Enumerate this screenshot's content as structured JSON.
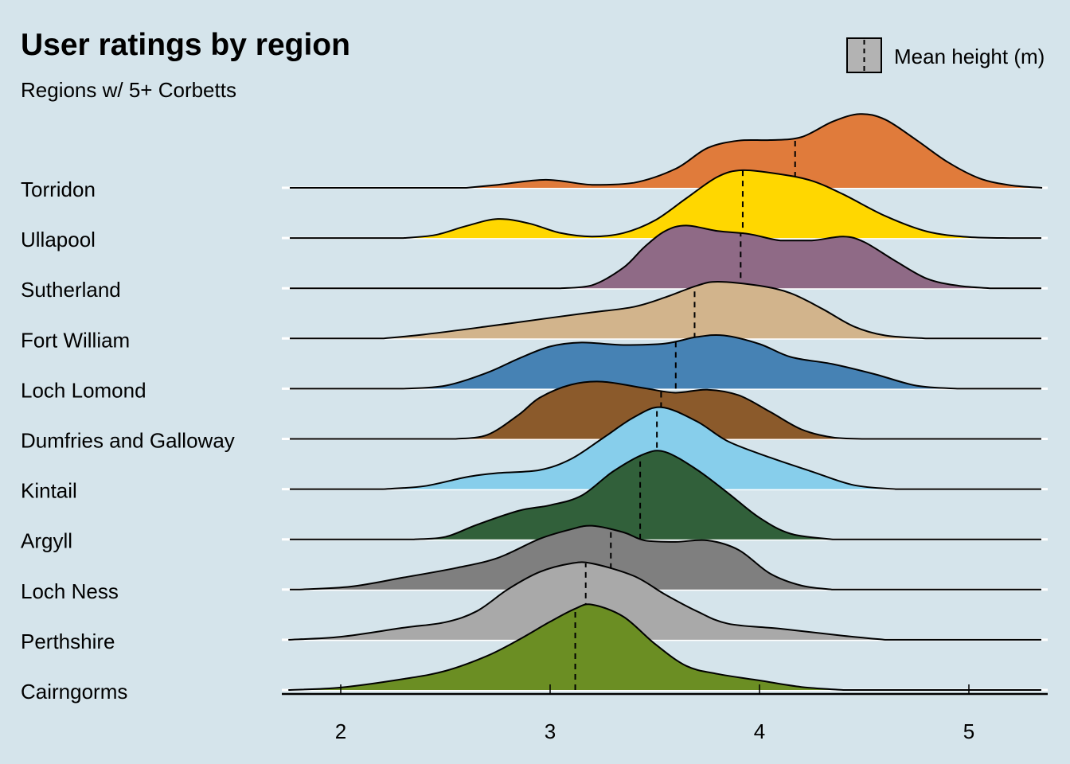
{
  "chart_data": {
    "type": "ridgeline",
    "title": "User ratings by region",
    "subtitle": "Regions w/ 5+ Corbetts",
    "xlabel": "",
    "ylabel": "",
    "xlim": [
      1.75,
      5.35
    ],
    "x_ticks": [
      2,
      3,
      4,
      5
    ],
    "x_tick_labels": [
      "2",
      "3",
      "4",
      "5"
    ],
    "grid": "horizontal baselines only",
    "legend": {
      "position": "top-right",
      "label": "Mean height (m)",
      "swatch_color": "#b3b3b3",
      "marker": "dashed vertical line"
    },
    "density_units": "relative height, 1 = spacing between rows",
    "series": [
      {
        "name": "Torridon",
        "color": "#e07b3b",
        "mean": 4.17,
        "density": [
          [
            2.6,
            0
          ],
          [
            2.75,
            0.06
          ],
          [
            2.98,
            0.16
          ],
          [
            3.2,
            0.06
          ],
          [
            3.4,
            0.1
          ],
          [
            3.6,
            0.38
          ],
          [
            3.75,
            0.79
          ],
          [
            3.9,
            0.94
          ],
          [
            4.05,
            0.95
          ],
          [
            4.2,
            1.01
          ],
          [
            4.35,
            1.32
          ],
          [
            4.48,
            1.47
          ],
          [
            4.6,
            1.36
          ],
          [
            4.75,
            0.95
          ],
          [
            4.9,
            0.51
          ],
          [
            5.05,
            0.19
          ],
          [
            5.2,
            0.05
          ],
          [
            5.35,
            0
          ]
        ]
      },
      {
        "name": "Ullapool",
        "color": "#ffd700",
        "mean": 3.92,
        "density": [
          [
            2.3,
            0
          ],
          [
            2.45,
            0.06
          ],
          [
            2.6,
            0.24
          ],
          [
            2.75,
            0.38
          ],
          [
            2.9,
            0.29
          ],
          [
            3.05,
            0.1
          ],
          [
            3.2,
            0.03
          ],
          [
            3.35,
            0.1
          ],
          [
            3.5,
            0.35
          ],
          [
            3.65,
            0.79
          ],
          [
            3.8,
            1.22
          ],
          [
            3.92,
            1.35
          ],
          [
            4.1,
            1.27
          ],
          [
            4.25,
            1.14
          ],
          [
            4.4,
            0.87
          ],
          [
            4.6,
            0.44
          ],
          [
            4.8,
            0.13
          ],
          [
            5.0,
            0.02
          ],
          [
            5.2,
            0
          ]
        ]
      },
      {
        "name": "Sutherland",
        "color": "#8f6a86",
        "mean": 3.91,
        "density": [
          [
            3.05,
            0
          ],
          [
            3.2,
            0.06
          ],
          [
            3.35,
            0.41
          ],
          [
            3.45,
            0.82
          ],
          [
            3.55,
            1.14
          ],
          [
            3.65,
            1.25
          ],
          [
            3.8,
            1.14
          ],
          [
            3.95,
            1.08
          ],
          [
            4.1,
            0.95
          ],
          [
            4.25,
            0.95
          ],
          [
            4.4,
            1.03
          ],
          [
            4.5,
            0.92
          ],
          [
            4.65,
            0.54
          ],
          [
            4.8,
            0.19
          ],
          [
            4.95,
            0.05
          ],
          [
            5.1,
            0
          ]
        ]
      },
      {
        "name": "Fort William",
        "color": "#d2b48c",
        "mean": 3.69,
        "density": [
          [
            2.2,
            0
          ],
          [
            2.4,
            0.08
          ],
          [
            2.7,
            0.24
          ],
          [
            3.0,
            0.41
          ],
          [
            3.2,
            0.52
          ],
          [
            3.4,
            0.63
          ],
          [
            3.55,
            0.82
          ],
          [
            3.7,
            1.05
          ],
          [
            3.8,
            1.13
          ],
          [
            4.0,
            1.05
          ],
          [
            4.15,
            0.9
          ],
          [
            4.3,
            0.59
          ],
          [
            4.45,
            0.24
          ],
          [
            4.6,
            0.06
          ],
          [
            4.8,
            0
          ]
        ]
      },
      {
        "name": "Loch Lomond",
        "color": "#4682b4",
        "mean": 3.6,
        "density": [
          [
            2.3,
            0
          ],
          [
            2.5,
            0.06
          ],
          [
            2.7,
            0.32
          ],
          [
            2.85,
            0.6
          ],
          [
            3.0,
            0.84
          ],
          [
            3.15,
            0.92
          ],
          [
            3.35,
            0.87
          ],
          [
            3.55,
            0.9
          ],
          [
            3.7,
            1.03
          ],
          [
            3.83,
            1.06
          ],
          [
            4.0,
            0.89
          ],
          [
            4.15,
            0.63
          ],
          [
            4.35,
            0.49
          ],
          [
            4.55,
            0.29
          ],
          [
            4.75,
            0.06
          ],
          [
            4.95,
            0
          ]
        ]
      },
      {
        "name": "Dumfries and Galloway",
        "color": "#8b5a2b",
        "mean": 3.53,
        "density": [
          [
            2.55,
            0
          ],
          [
            2.7,
            0.08
          ],
          [
            2.85,
            0.48
          ],
          [
            2.95,
            0.82
          ],
          [
            3.1,
            1.08
          ],
          [
            3.25,
            1.14
          ],
          [
            3.45,
            1.01
          ],
          [
            3.6,
            0.92
          ],
          [
            3.75,
            0.98
          ],
          [
            3.9,
            0.87
          ],
          [
            4.05,
            0.54
          ],
          [
            4.2,
            0.19
          ],
          [
            4.35,
            0.03
          ],
          [
            4.5,
            0
          ]
        ]
      },
      {
        "name": "Kintail",
        "color": "#87ceeb",
        "mean": 3.51,
        "density": [
          [
            2.2,
            0
          ],
          [
            2.4,
            0.06
          ],
          [
            2.6,
            0.24
          ],
          [
            2.75,
            0.32
          ],
          [
            2.95,
            0.38
          ],
          [
            3.1,
            0.6
          ],
          [
            3.25,
            1.01
          ],
          [
            3.4,
            1.43
          ],
          [
            3.53,
            1.63
          ],
          [
            3.7,
            1.35
          ],
          [
            3.85,
            0.95
          ],
          [
            4.05,
            0.63
          ],
          [
            4.25,
            0.35
          ],
          [
            4.45,
            0.08
          ],
          [
            4.65,
            0
          ]
        ]
      },
      {
        "name": "Argyll",
        "color": "#31603a",
        "mean": 3.43,
        "density": [
          [
            2.35,
            0
          ],
          [
            2.5,
            0.05
          ],
          [
            2.65,
            0.29
          ],
          [
            2.85,
            0.57
          ],
          [
            3.0,
            0.68
          ],
          [
            3.15,
            0.87
          ],
          [
            3.3,
            1.35
          ],
          [
            3.45,
            1.7
          ],
          [
            3.55,
            1.74
          ],
          [
            3.7,
            1.39
          ],
          [
            3.85,
            0.92
          ],
          [
            4.0,
            0.43
          ],
          [
            4.15,
            0.11
          ],
          [
            4.35,
            0
          ]
        ]
      },
      {
        "name": "Loch Ness",
        "color": "#7f7f7f",
        "mean": 3.29,
        "density": [
          [
            1.8,
            0
          ],
          [
            2.05,
            0.06
          ],
          [
            2.3,
            0.24
          ],
          [
            2.55,
            0.43
          ],
          [
            2.75,
            0.63
          ],
          [
            2.95,
            1.01
          ],
          [
            3.1,
            1.2
          ],
          [
            3.2,
            1.27
          ],
          [
            3.35,
            1.14
          ],
          [
            3.45,
            0.98
          ],
          [
            3.6,
            0.95
          ],
          [
            3.75,
            0.98
          ],
          [
            3.9,
            0.79
          ],
          [
            4.05,
            0.32
          ],
          [
            4.2,
            0.08
          ],
          [
            4.35,
            0
          ]
        ]
      },
      {
        "name": "Perthshire",
        "color": "#a9a9a9",
        "mean": 3.17,
        "density": [
          [
            1.75,
            0
          ],
          [
            2.0,
            0.06
          ],
          [
            2.3,
            0.24
          ],
          [
            2.5,
            0.35
          ],
          [
            2.65,
            0.57
          ],
          [
            2.8,
            1.01
          ],
          [
            2.95,
            1.35
          ],
          [
            3.1,
            1.52
          ],
          [
            3.2,
            1.52
          ],
          [
            3.4,
            1.27
          ],
          [
            3.55,
            0.9
          ],
          [
            3.7,
            0.57
          ],
          [
            3.85,
            0.32
          ],
          [
            4.1,
            0.22
          ],
          [
            4.4,
            0.08
          ],
          [
            4.6,
            0
          ]
        ]
      },
      {
        "name": "Cairngorms",
        "color": "#6b8e23",
        "mean": 3.12,
        "density": [
          [
            1.75,
            0
          ],
          [
            2.0,
            0.05
          ],
          [
            2.3,
            0.22
          ],
          [
            2.5,
            0.38
          ],
          [
            2.7,
            0.68
          ],
          [
            2.85,
            1.0
          ],
          [
            3.0,
            1.36
          ],
          [
            3.12,
            1.62
          ],
          [
            3.2,
            1.7
          ],
          [
            3.35,
            1.46
          ],
          [
            3.5,
            0.92
          ],
          [
            3.65,
            0.48
          ],
          [
            3.8,
            0.32
          ],
          [
            4.0,
            0.19
          ],
          [
            4.2,
            0.06
          ],
          [
            4.4,
            0
          ]
        ]
      }
    ]
  }
}
